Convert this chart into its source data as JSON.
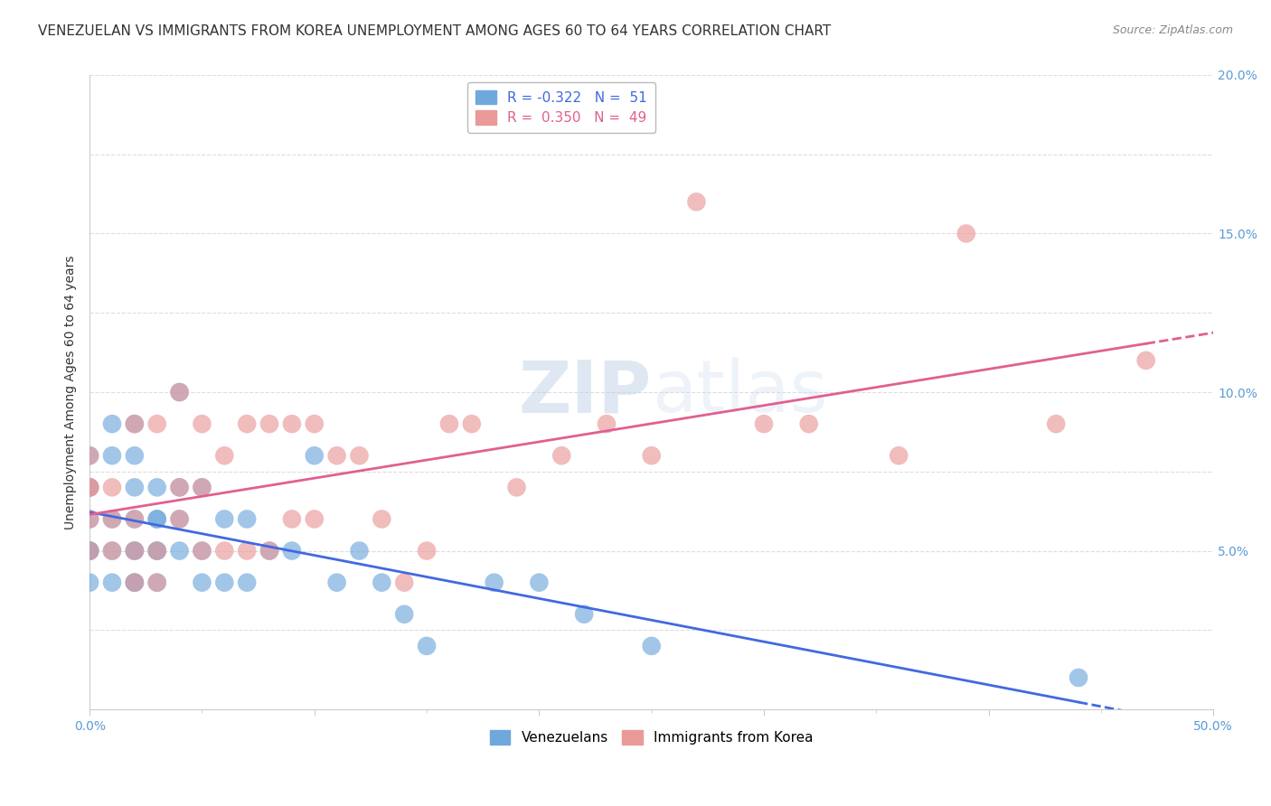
{
  "title": "VENEZUELAN VS IMMIGRANTS FROM KOREA UNEMPLOYMENT AMONG AGES 60 TO 64 YEARS CORRELATION CHART",
  "source": "Source: ZipAtlas.com",
  "ylabel": "Unemployment Among Ages 60 to 64 years",
  "xlim": [
    0.0,
    0.5
  ],
  "ylim": [
    0.0,
    0.2
  ],
  "legend_r1": "R = -0.322",
  "legend_n1": "N =  51",
  "legend_r2": "R =  0.350",
  "legend_n2": "N =  49",
  "blue_color": "#6fa8dc",
  "pink_color": "#ea9999",
  "blue_line_color": "#4169e1",
  "pink_line_color": "#e06090",
  "venezuelan_points_x": [
    0.0,
    0.0,
    0.0,
    0.0,
    0.0,
    0.0,
    0.0,
    0.0,
    0.01,
    0.01,
    0.01,
    0.01,
    0.01,
    0.02,
    0.02,
    0.02,
    0.02,
    0.02,
    0.02,
    0.02,
    0.02,
    0.03,
    0.03,
    0.03,
    0.03,
    0.03,
    0.03,
    0.04,
    0.04,
    0.04,
    0.04,
    0.05,
    0.05,
    0.05,
    0.06,
    0.06,
    0.07,
    0.07,
    0.08,
    0.09,
    0.1,
    0.11,
    0.12,
    0.13,
    0.14,
    0.15,
    0.18,
    0.2,
    0.22,
    0.25,
    0.44
  ],
  "venezuelan_points_y": [
    0.04,
    0.05,
    0.05,
    0.06,
    0.07,
    0.07,
    0.08,
    0.05,
    0.04,
    0.05,
    0.06,
    0.08,
    0.09,
    0.04,
    0.05,
    0.06,
    0.07,
    0.08,
    0.09,
    0.04,
    0.05,
    0.05,
    0.06,
    0.07,
    0.04,
    0.05,
    0.06,
    0.05,
    0.06,
    0.07,
    0.1,
    0.04,
    0.05,
    0.07,
    0.04,
    0.06,
    0.04,
    0.06,
    0.05,
    0.05,
    0.08,
    0.04,
    0.05,
    0.04,
    0.03,
    0.02,
    0.04,
    0.04,
    0.03,
    0.02,
    0.01
  ],
  "korea_points_x": [
    0.0,
    0.0,
    0.0,
    0.0,
    0.0,
    0.01,
    0.01,
    0.01,
    0.02,
    0.02,
    0.02,
    0.02,
    0.03,
    0.03,
    0.03,
    0.04,
    0.04,
    0.04,
    0.05,
    0.05,
    0.05,
    0.06,
    0.06,
    0.07,
    0.07,
    0.08,
    0.08,
    0.09,
    0.09,
    0.1,
    0.1,
    0.11,
    0.12,
    0.13,
    0.14,
    0.15,
    0.16,
    0.17,
    0.19,
    0.21,
    0.23,
    0.25,
    0.27,
    0.3,
    0.32,
    0.36,
    0.39,
    0.43,
    0.47
  ],
  "korea_points_y": [
    0.05,
    0.06,
    0.07,
    0.07,
    0.08,
    0.05,
    0.06,
    0.07,
    0.04,
    0.05,
    0.06,
    0.09,
    0.04,
    0.05,
    0.09,
    0.06,
    0.07,
    0.1,
    0.05,
    0.07,
    0.09,
    0.05,
    0.08,
    0.05,
    0.09,
    0.05,
    0.09,
    0.06,
    0.09,
    0.06,
    0.09,
    0.08,
    0.08,
    0.06,
    0.04,
    0.05,
    0.09,
    0.09,
    0.07,
    0.08,
    0.09,
    0.08,
    0.16,
    0.09,
    0.09,
    0.08,
    0.15,
    0.09,
    0.11
  ],
  "watermark_zip": "ZIP",
  "watermark_atlas": "atlas",
  "background_color": "#ffffff",
  "grid_color": "#dddddd",
  "title_fontsize": 11,
  "axis_label_fontsize": 10,
  "tick_fontsize": 10
}
